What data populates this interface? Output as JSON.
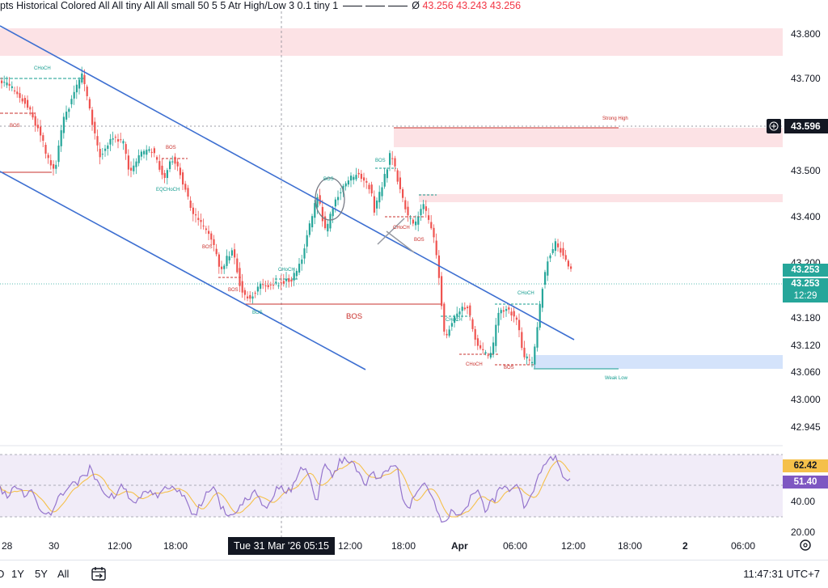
{
  "legend": {
    "text": "pts Historical Colored All All tiny All All small 50 5 5 Atr High/Low 3 0.1 tiny 1",
    "symbol": "Ø",
    "values": "43.256  43.243  43.256"
  },
  "price_axis": {
    "ticks": [
      "43.800",
      "43.700",
      "43.500",
      "43.400",
      "43.200",
      "43.180",
      "43.120",
      "43.060",
      "43.000",
      "42.945"
    ],
    "crosshair_price": "43.596",
    "last_price": "43.253",
    "last_price_repeat": "43.253",
    "countdown": "12:29"
  },
  "rsi_axis": {
    "ticks": [
      "40.00",
      "20.00"
    ],
    "ma_value": "62.42",
    "rsi_value": "51.40"
  },
  "time_axis": {
    "ticks": [
      "28",
      "30",
      "12:00",
      "18:00",
      "12:00",
      "18:00",
      "Apr",
      "06:00",
      "12:00",
      "18:00",
      "2",
      "06:00"
    ],
    "crosshair_label": "Tue 31 Mar '26   05:15"
  },
  "annotations": {
    "strong_high": "Strong High",
    "weak_low": "Weak Low",
    "bos": "BOS",
    "choch": "CHoCH",
    "eqchoch": "EQCHoCH"
  },
  "toolbar": {
    "ranges": [
      "1Y",
      "5Y",
      "All"
    ],
    "clock": "11:47:31 UTC+7"
  },
  "colors": {
    "up": "#26a69a",
    "down": "#ef5350",
    "channel": "#3d6fd1",
    "rsi": "#9575cd",
    "rsi_ma": "#f5c04a",
    "bos": "#c9302c",
    "choch": "#139c8f"
  }
}
